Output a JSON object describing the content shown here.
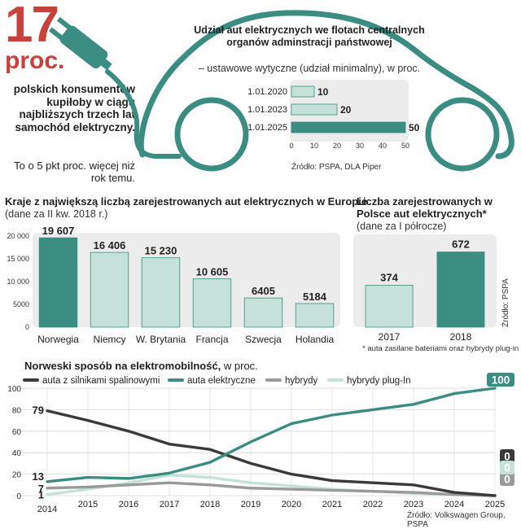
{
  "headline": {
    "number": "17",
    "unit": "proc.",
    "lead": "polskich konsumentów kupiłoby w ciągu najbliższych trzech lat samochód elektryczny.",
    "lead_sub": "To o 5 pkt proc. więcej niż rok temu."
  },
  "colors": {
    "teal": "#3a8d80",
    "light_teal": "#c5e2da",
    "dark_line": "#3a3a3a",
    "gray_line": "#9a9a9a",
    "red": "#c8423c",
    "panel": "#ececec"
  },
  "share": {
    "title": "Udział aut elektrycznych we flotach centralnych organów adminstracji państwowej",
    "subtitle": "– ustawowe wytyczne (udział minimalny), w proc.",
    "source": "Źródło: PSPA, DLA Piper"
  },
  "europe": {
    "title": "Kraje z największą liczbą zarejestrowanych aut elektrycznych w Europie",
    "subtitle": "(dane za II kw. 2018 r.)"
  },
  "poland": {
    "title": "Liczba zarejestrowanych w Polsce aut elektrycznych*",
    "subtitle": "(dane za I półrocze)",
    "source": "Źródło: PSPA",
    "footnote": "* auta zasilane bateriami oraz hybrydy plug-in"
  },
  "norway": {
    "title": "Norweski sposób na elektromobilność,",
    "title_suffix": " w proc.",
    "source": "Źródło: Volkswagen Group, PSPA"
  },
  "chart_data": [
    {
      "type": "bar",
      "orientation": "horizontal",
      "title": "Udział aut elektrycznych we flotach centralnych organów adminstracji państwowej",
      "categories": [
        "1.01.2020",
        "1.01.2023",
        "1.01.2025"
      ],
      "values": [
        10,
        20,
        50
      ],
      "value_labels": [
        "10",
        "20",
        "50"
      ],
      "xlim": [
        0,
        50
      ],
      "xticks": [
        "0",
        "10",
        "20",
        "30",
        "40",
        "50"
      ]
    },
    {
      "type": "bar",
      "title": "Kraje z największą liczbą zarejestrowanych aut elektrycznych w Europie",
      "categories": [
        "Norwegia",
        "Niemcy",
        "W. Brytania",
        "Francja",
        "Szwecja",
        "Holandia"
      ],
      "values": [
        19607,
        16406,
        15230,
        10605,
        6405,
        5184
      ],
      "value_labels": [
        "19 607",
        "16 406",
        "15 230",
        "10 605",
        "6405",
        "5184"
      ],
      "ylim": [
        0,
        20000
      ],
      "yticks": [
        "0",
        "5000",
        "10 000",
        "15 000",
        "20 000"
      ],
      "highlight": "Norwegia"
    },
    {
      "type": "bar",
      "title": "Liczba zarejestrowanych w Polsce aut elektrycznych*",
      "categories": [
        "2017",
        "2018"
      ],
      "values": [
        374,
        672
      ],
      "value_labels": [
        "374",
        "672"
      ],
      "ylim": [
        0,
        800
      ],
      "highlight": "2018"
    },
    {
      "type": "line",
      "title": "Norweski sposób na elektromobilność, w proc.",
      "x": [
        "2014",
        "2015",
        "2016",
        "2017",
        "2018",
        "2019",
        "2020",
        "2021",
        "2022",
        "2023",
        "2024",
        "2025"
      ],
      "ylim": [
        0,
        100
      ],
      "yticks": [
        "0",
        "20",
        "40",
        "60",
        "80",
        "100"
      ],
      "series": [
        {
          "name": "auta z silnikami spalinowymi",
          "values": [
            79,
            70,
            60,
            48,
            43,
            30,
            20,
            14,
            12,
            10,
            3,
            0
          ]
        },
        {
          "name": "auta elektryczne",
          "values": [
            13,
            17,
            16,
            21,
            31,
            50,
            67,
            75,
            80,
            85,
            95,
            100
          ]
        },
        {
          "name": "hybrydy",
          "values": [
            7,
            8,
            10,
            12,
            10,
            7,
            6,
            5,
            4,
            3,
            1,
            0
          ]
        },
        {
          "name": "hybrydy plug-In",
          "values": [
            1,
            6,
            12,
            19,
            17,
            12,
            9,
            6,
            4,
            2,
            1,
            0
          ]
        }
      ],
      "start_labels": [
        "79",
        "13",
        "7",
        "1"
      ],
      "end_labels": [
        "0",
        "100",
        "0",
        "0"
      ]
    }
  ]
}
